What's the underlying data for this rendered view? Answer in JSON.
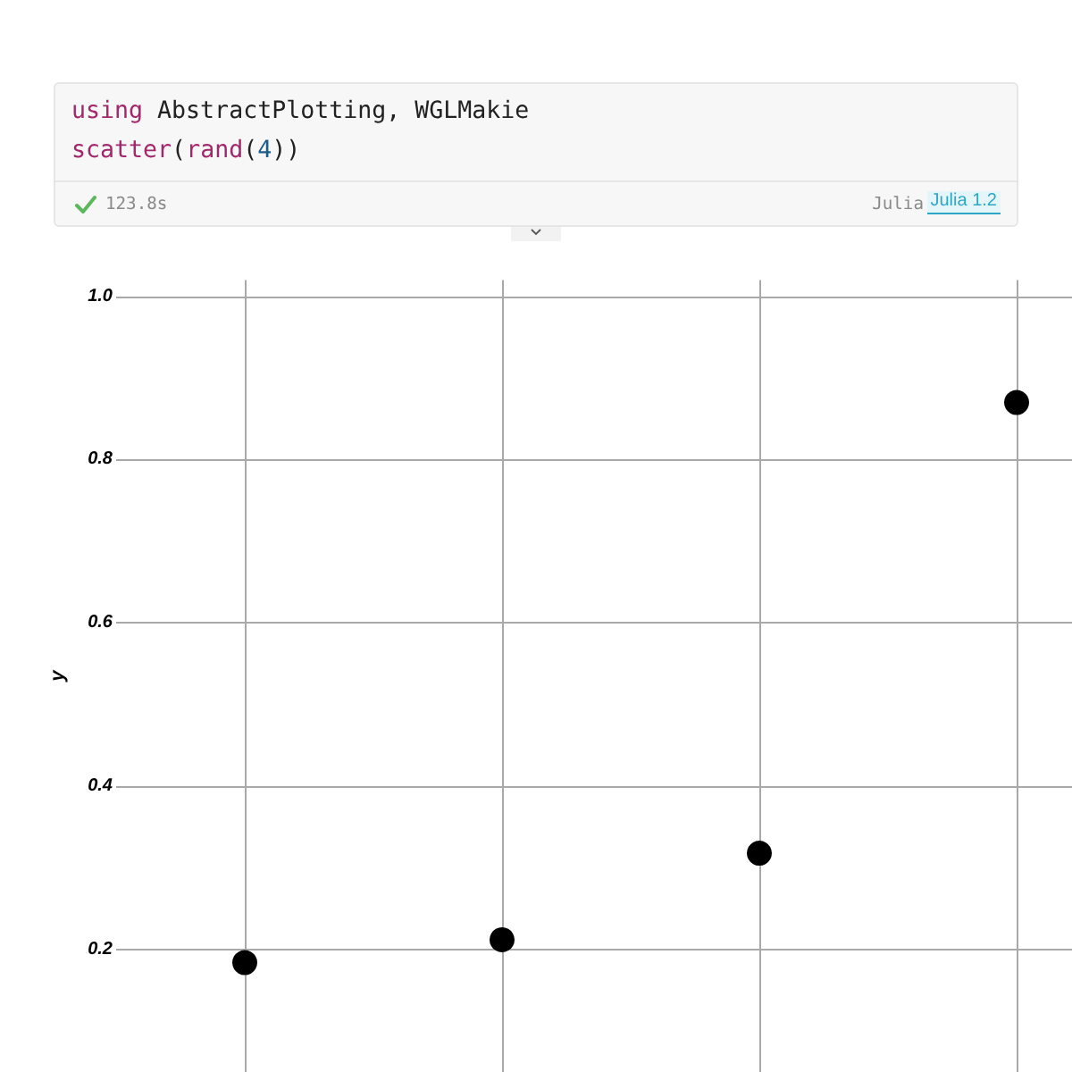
{
  "chart_data": {
    "type": "scatter",
    "categories": [
      null,
      null,
      null,
      null
    ],
    "values": [
      0.184,
      0.212,
      0.318,
      0.87
    ],
    "color": "#000000",
    "marker": "circle",
    "ylim": [
      0.05,
      1.02
    ],
    "yticks": [
      0.2,
      0.4,
      0.6,
      {
        "value": 0.8,
        "label": "0.8"
      },
      {
        "value": 1,
        "label": "1.0"
      }
    ],
    "ylabel": "y",
    "grid": true,
    "tick_labels": "y",
    "annotations": [
      "using AbstractPlotting, WGLMakie",
      "scatter(rand(4))",
      "123.8s",
      "Julia",
      "Julia 1.2"
    ]
  }
}
